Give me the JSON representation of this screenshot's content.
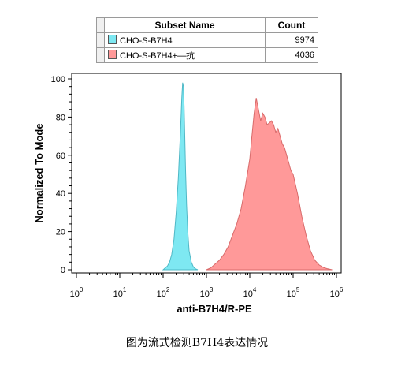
{
  "legend": {
    "header_name": "Subset Name",
    "header_count": "Count",
    "rows": [
      {
        "name": "CHO-S-B7H4",
        "count": "9974",
        "color": "#7ee8f2"
      },
      {
        "name": "CHO-S-B7H4+—抗",
        "count": "4036",
        "color": "#ff9999"
      }
    ]
  },
  "caption": "图为流式检测B7H4表达情况",
  "chart_data": {
    "type": "area",
    "xlabel": "anti-B7H4/R-PE",
    "ylabel": "Normalized To Mode",
    "x_scale": "log",
    "xlim": [
      1,
      1000000
    ],
    "ylim": [
      0,
      105
    ],
    "x_ticks": [
      {
        "base": "10",
        "exp": "0"
      },
      {
        "base": "10",
        "exp": "1"
      },
      {
        "base": "10",
        "exp": "2"
      },
      {
        "base": "10",
        "exp": "3"
      },
      {
        "base": "10",
        "exp": "4"
      },
      {
        "base": "10",
        "exp": "5"
      },
      {
        "base": "10",
        "exp": "6"
      }
    ],
    "y_ticks": [
      "0",
      "20",
      "40",
      "60",
      "80",
      "100"
    ],
    "grid": false,
    "series": [
      {
        "name": "CHO-S-B7H4",
        "color": "#7ee8f2",
        "stroke": "#4fb8c6",
        "x": [
          100,
          112,
          126,
          141,
          158,
          178,
          200,
          224,
          251,
          270,
          282,
          295,
          305,
          316,
          330,
          348,
          370,
          398,
          447,
          501,
          562,
          631
        ],
        "y": [
          0,
          1,
          2,
          4,
          8,
          16,
          30,
          48,
          72,
          90,
          98,
          96,
          86,
          70,
          52,
          34,
          20,
          10,
          4,
          1.5,
          0.5,
          0
        ]
      },
      {
        "name": "CHO-S-B7H4+—抗",
        "color": "#ff9999",
        "stroke": "#d86a6a",
        "x": [
          1000,
          1259,
          1585,
          1995,
          2512,
          3162,
          3981,
          5012,
          6310,
          7943,
          10000,
          11220,
          12589,
          14125,
          15849,
          17783,
          19953,
          22387,
          25119,
          28184,
          31623,
          35481,
          39811,
          44668,
          50119,
          56234,
          63096,
          70795,
          79433,
          89125,
          100000,
          125893,
          158489,
          199526,
          251189,
          316228,
          398107,
          501187,
          630957,
          794328
        ],
        "y": [
          0,
          1,
          3,
          5,
          8,
          12,
          18,
          24,
          32,
          44,
          58,
          70,
          82,
          90,
          84,
          78,
          82,
          80,
          76,
          77,
          78,
          76,
          72,
          74,
          70,
          66,
          64,
          60,
          56,
          52,
          50,
          40,
          28,
          18,
          10,
          5,
          2.5,
          1.2,
          0.5,
          0
        ]
      }
    ]
  }
}
